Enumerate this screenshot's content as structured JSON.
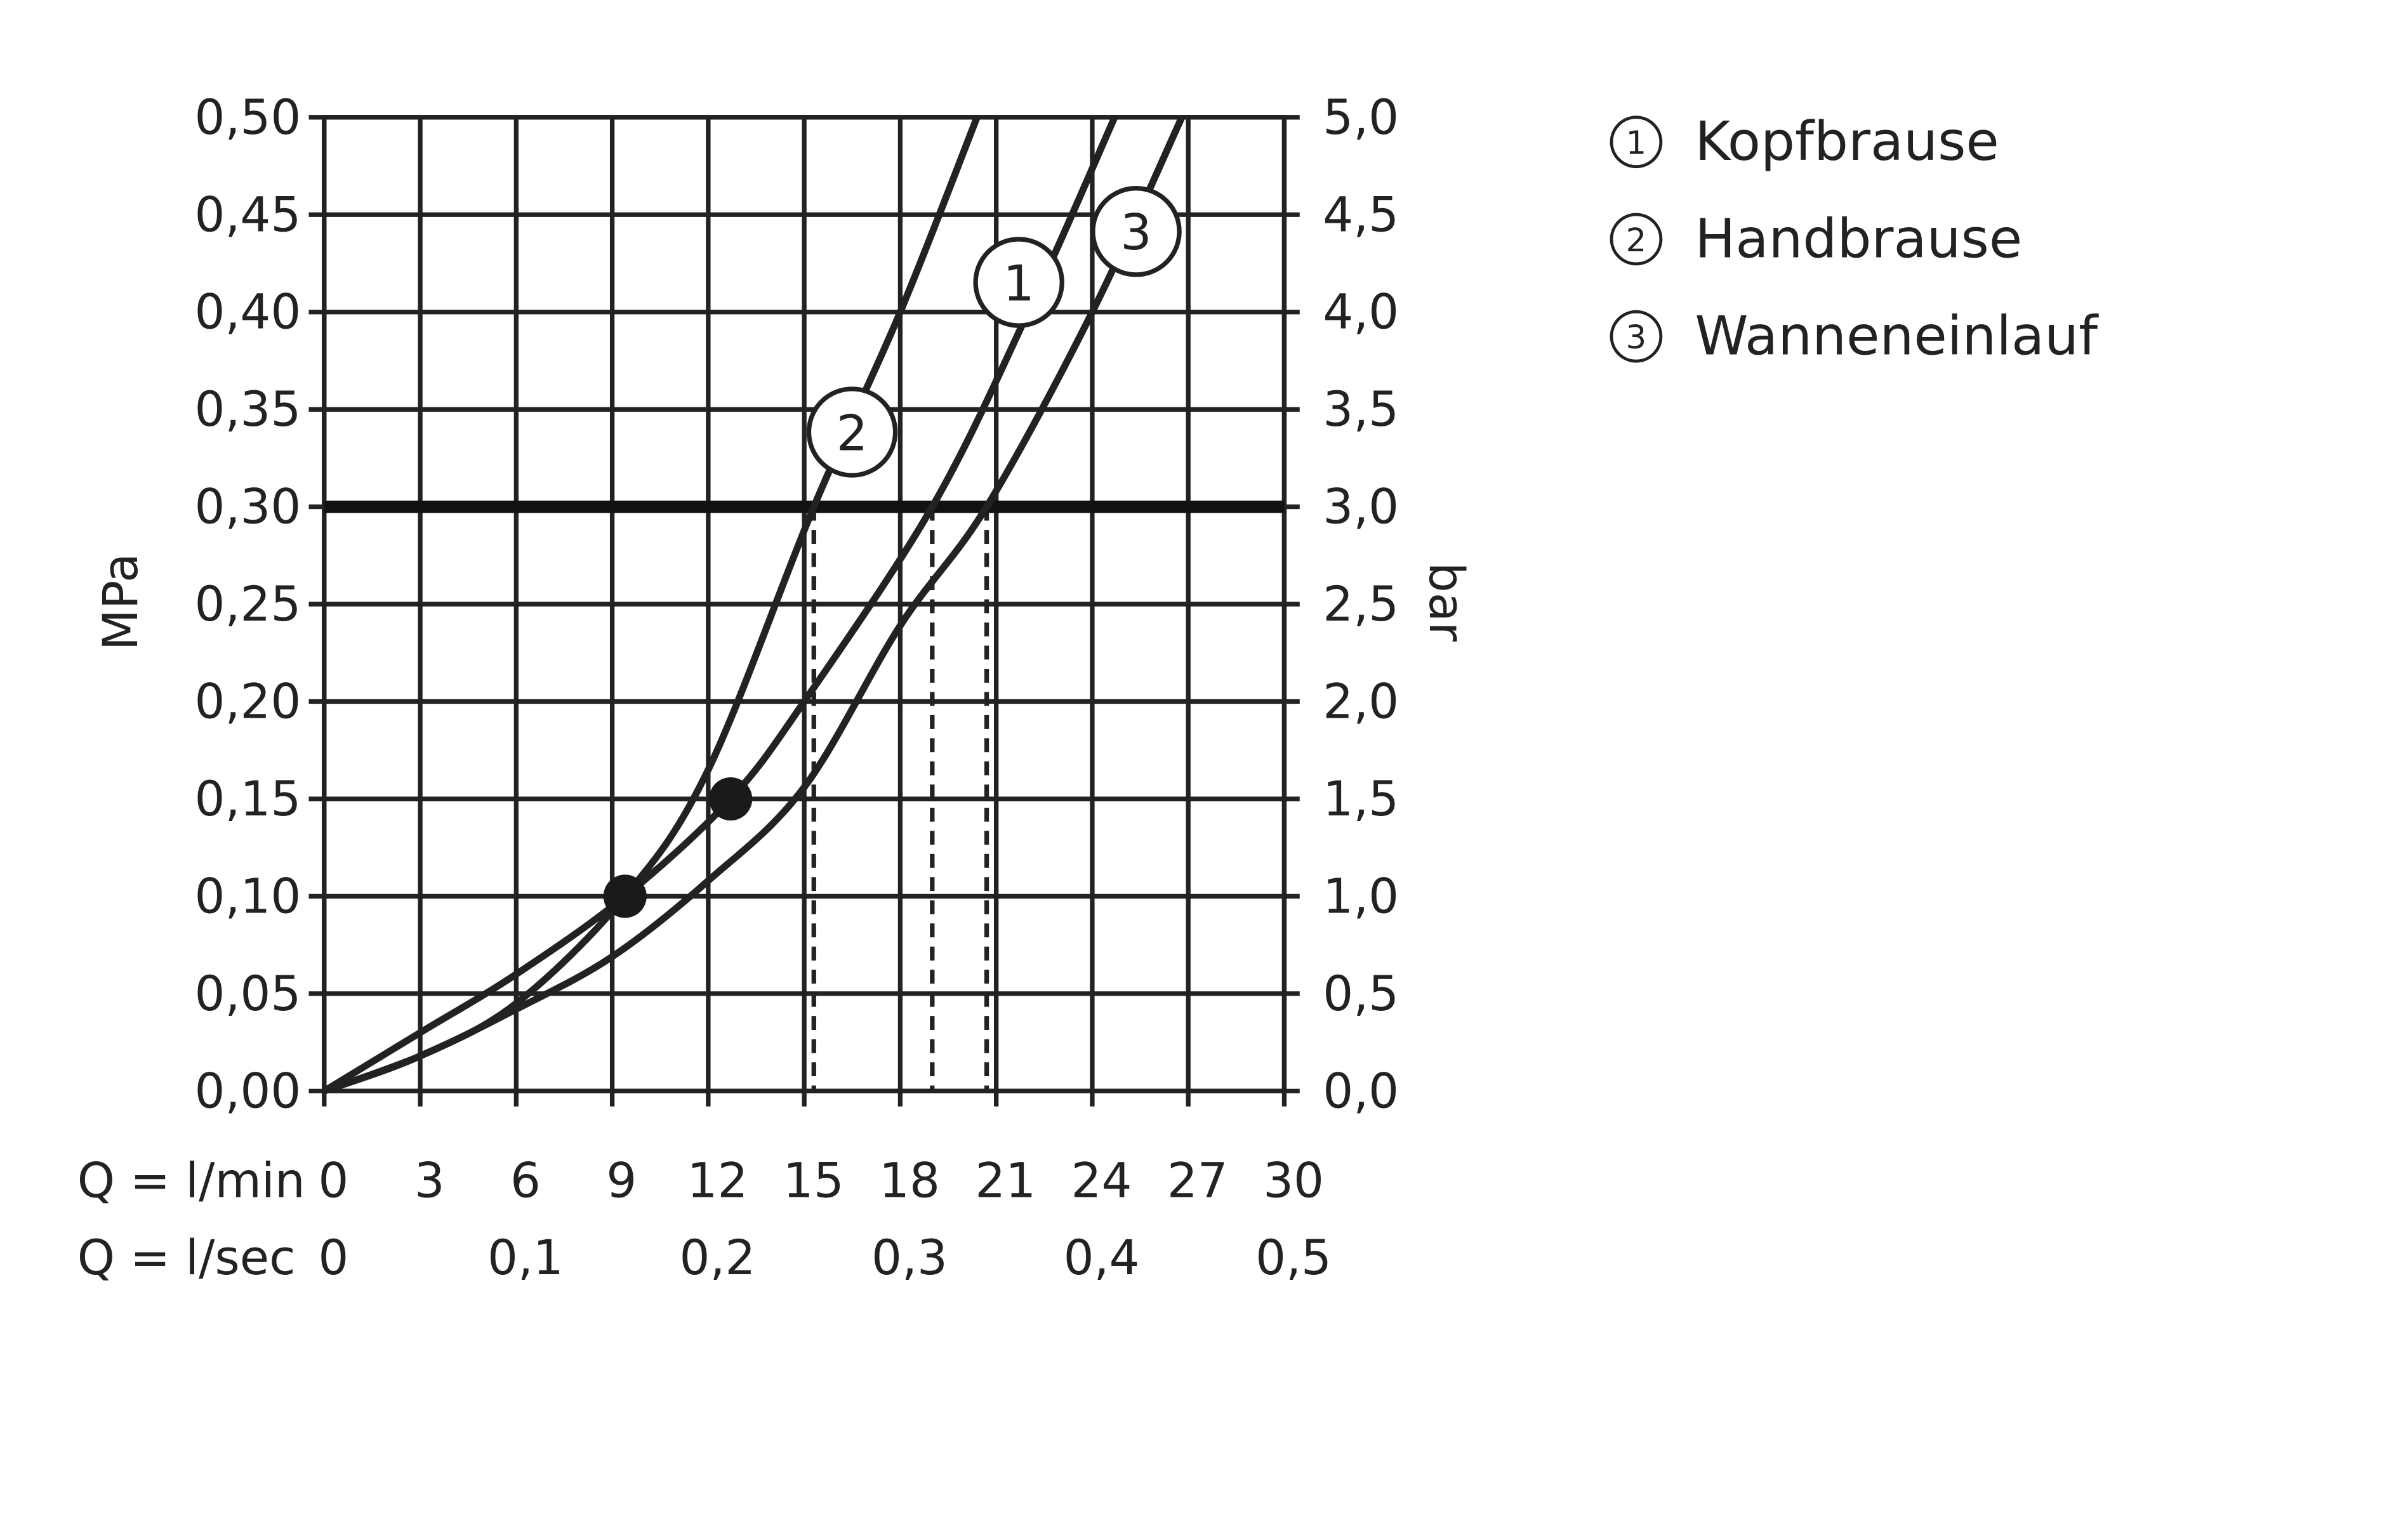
{
  "chart_data": {
    "type": "line",
    "y_label": "MPa",
    "y2_label": "bar",
    "x_label": "Q = l/min",
    "x2_label": "Q = l/sec",
    "xlim": [
      0,
      30
    ],
    "xticks": [
      0,
      3,
      6,
      9,
      12,
      15,
      18,
      21,
      24,
      27,
      30
    ],
    "x2lim": [
      0,
      0.5
    ],
    "x2ticks": [
      0,
      {
        "value": 0.1,
        "label": "0,1"
      },
      {
        "value": 0.2,
        "label": "0,2"
      },
      {
        "value": 0.3,
        "label": "0,3"
      },
      {
        "value": 0.4,
        "label": "0,4"
      },
      {
        "value": 0.5,
        "label": "0,5"
      }
    ],
    "ylim": [
      0,
      0.5
    ],
    "yticks": [
      {
        "value": 0,
        "label": "0,00"
      },
      {
        "value": 0.05,
        "label": "0,05"
      },
      {
        "value": 0.1,
        "label": "0,10"
      },
      {
        "value": 0.15,
        "label": "0,15"
      },
      {
        "value": 0.2,
        "label": "0,20"
      },
      {
        "value": 0.25,
        "label": "0,25"
      },
      {
        "value": 0.3,
        "label": "0,30"
      },
      {
        "value": 0.35,
        "label": "0,35"
      },
      {
        "value": 0.4,
        "label": "0,40"
      },
      {
        "value": 0.45,
        "label": "0,45"
      },
      {
        "value": 0.5,
        "label": "0,50"
      }
    ],
    "y2lim": [
      0,
      5
    ],
    "y2ticks": [
      {
        "value": 0,
        "label": "0,0"
      },
      {
        "value": 0.5,
        "label": "0,5"
      },
      {
        "value": 1,
        "label": "1,0"
      },
      {
        "value": 1.5,
        "label": "1,5"
      },
      {
        "value": 2,
        "label": "2,0"
      },
      {
        "value": 2.5,
        "label": "2,5"
      },
      {
        "value": 3,
        "label": "3,0"
      },
      {
        "value": 3.5,
        "label": "3,5"
      },
      {
        "value": 4,
        "label": "4,0"
      },
      {
        "value": 4.5,
        "label": "4,5"
      },
      {
        "value": 5,
        "label": "5,0"
      }
    ],
    "grid": true,
    "legend": "right",
    "series": [
      {
        "name": "Kopfbrause",
        "label": "1",
        "color": "#222222",
        "x": [
          0,
          3,
          6,
          9.4,
          12.7,
          15,
          19,
          22,
          24.7
        ],
        "values": [
          0,
          0.03,
          0.06,
          0.1,
          0.15,
          0.2,
          0.3,
          0.4,
          0.5
        ]
      },
      {
        "name": "Handbrause",
        "label": "2",
        "color": "#222222",
        "x": [
          0,
          3,
          6,
          9.4,
          12,
          15.3,
          18,
          20.4
        ],
        "values": [
          0,
          0.018,
          0.045,
          0.1,
          0.165,
          0.3,
          0.4,
          0.5
        ]
      },
      {
        "name": "Wanneneinlauf",
        "label": "3",
        "color": "#222222",
        "x": [
          0,
          3,
          6,
          9,
          12,
          15,
          18,
          20.7,
          24,
          26.8
        ],
        "values": [
          0,
          0.018,
          0.042,
          0.069,
          0.108,
          0.156,
          0.239,
          0.3,
          0.4,
          0.5
        ]
      }
    ],
    "markers": {
      "x": [
        9.4,
        12.7
      ],
      "values": [
        0.1,
        0.15
      ]
    },
    "threshold": 0.3,
    "reference_x": [
      15.3,
      19,
      20.7
    ]
  }
}
